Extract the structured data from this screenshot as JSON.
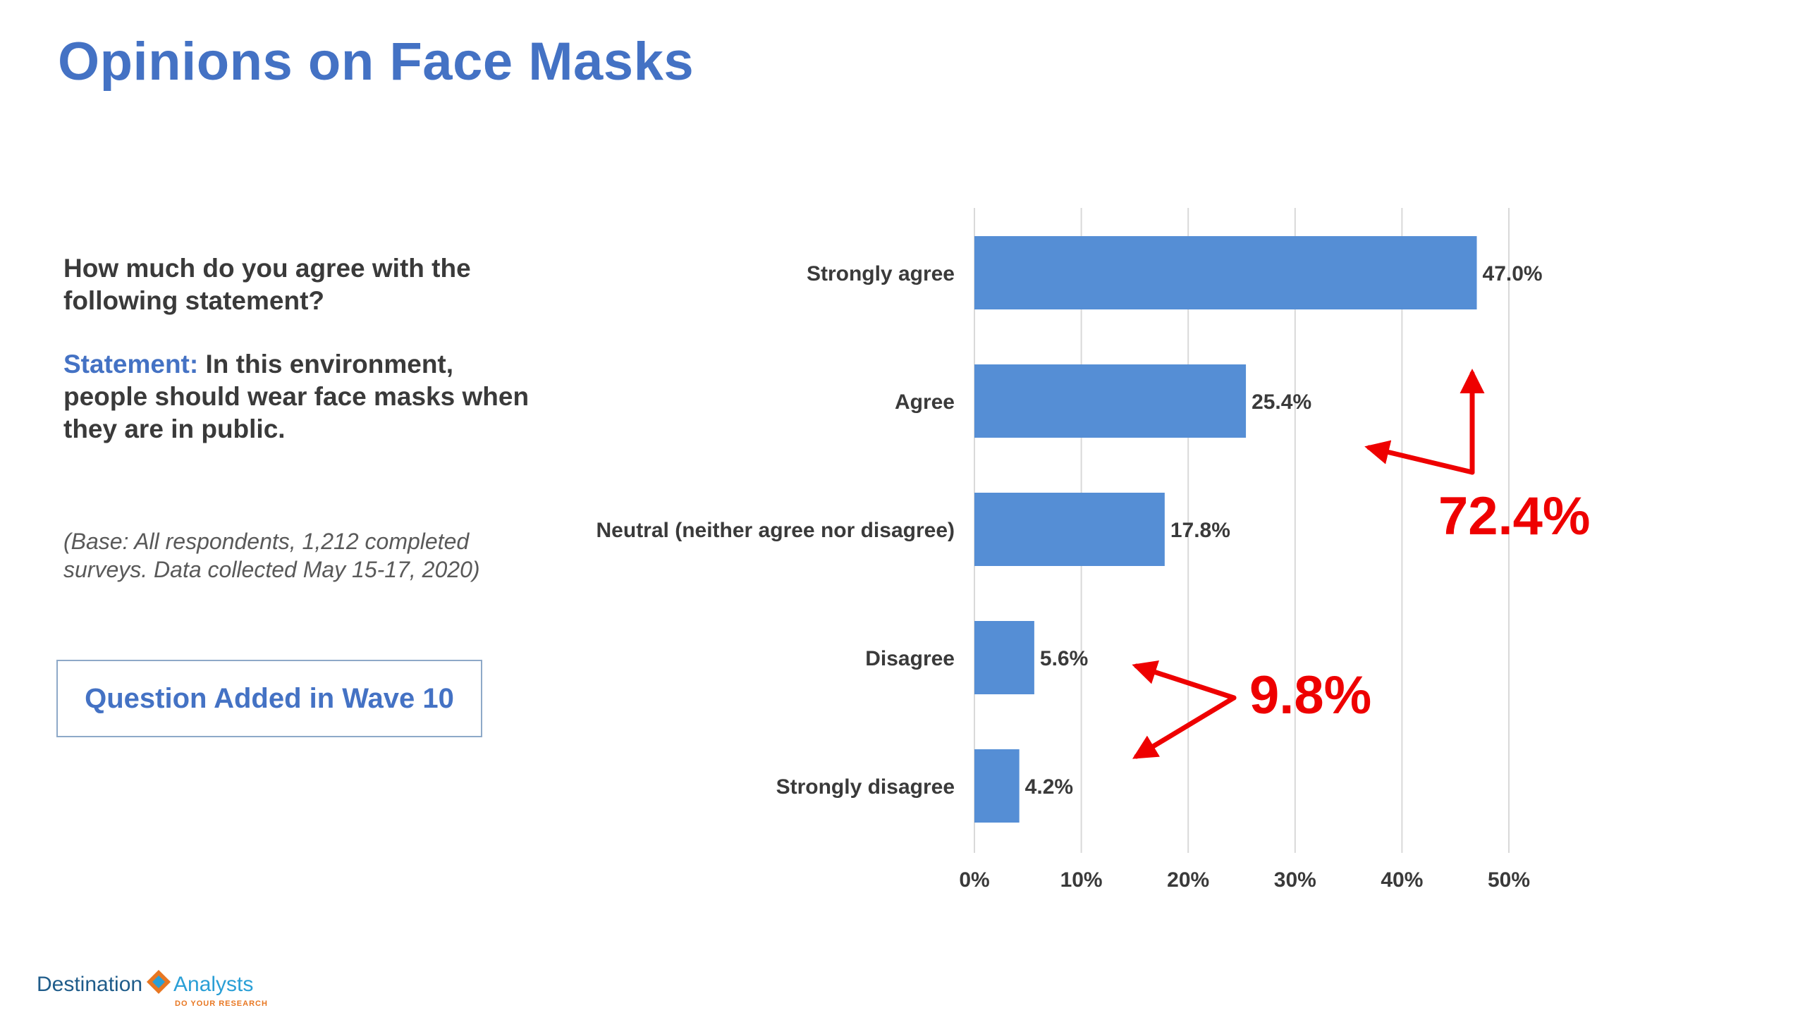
{
  "page": {
    "title": "Opinions on Face Masks",
    "question": "How much do you agree with the following statement?",
    "statement_label": "Statement:",
    "statement_text": "In this environment, people should wear face masks when they are in public.",
    "base_note": "(Base: All respondents, 1,212 completed surveys. Data collected May 15-17, 2020)",
    "wave_badge": "Question Added in Wave 10",
    "logo": {
      "left": "Destination",
      "right": "Analysts",
      "tagline": "DO YOUR RESEARCH"
    }
  },
  "colors": {
    "title": "#4472c4",
    "bar": "#558ed5",
    "annotation": "#ee0000",
    "grid": "#d9d9d9",
    "text": "#3a3a3a"
  },
  "chart_data": {
    "type": "bar",
    "orientation": "horizontal",
    "categories": [
      "Strongly agree",
      "Agree",
      "Neutral (neither agree nor disagree)",
      "Disagree",
      "Strongly disagree"
    ],
    "values": [
      47.0,
      25.4,
      17.8,
      5.6,
      4.2
    ],
    "data_labels": [
      "47.0%",
      "25.4%",
      "17.8%",
      "5.6%",
      "4.2%"
    ],
    "xlim": [
      0,
      50
    ],
    "x_ticks": [
      0,
      10,
      20,
      30,
      40,
      50
    ],
    "x_tick_labels": [
      "0%",
      "10%",
      "20%",
      "30%",
      "40%",
      "50%"
    ],
    "grid": true,
    "annotations": [
      {
        "text": "72.4%",
        "refers_to": [
          "Strongly agree",
          "Agree"
        ]
      },
      {
        "text": "9.8%",
        "refers_to": [
          "Disagree",
          "Strongly disagree"
        ]
      }
    ]
  }
}
